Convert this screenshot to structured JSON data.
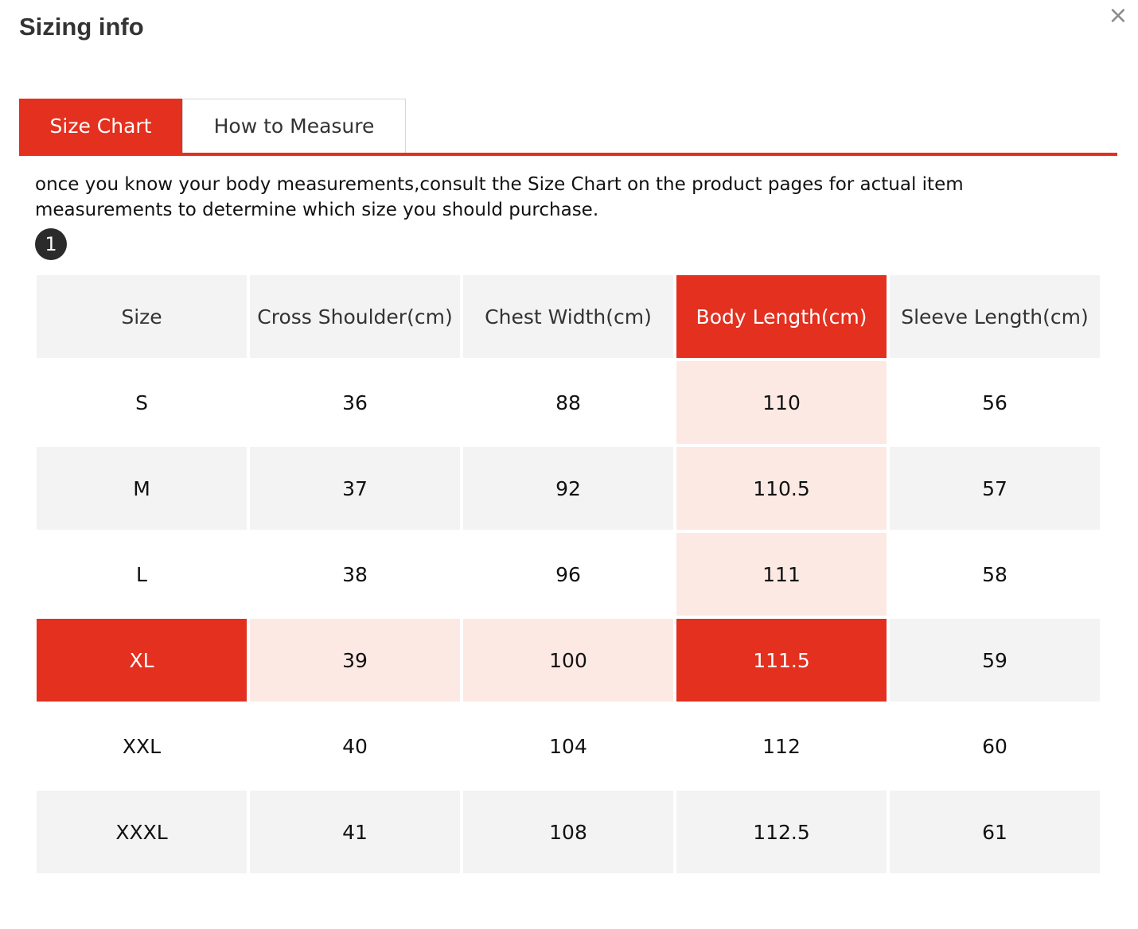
{
  "modal": {
    "title": "Sizing info",
    "close_icon": "×"
  },
  "tabs": [
    {
      "label": "Size Chart",
      "active": true
    },
    {
      "label": "How to Measure",
      "active": false
    }
  ],
  "description": "once you know your body measurements,consult the Size Chart on the product pages for actual item measurements to determine which size you should purchase.",
  "step_badge": "1",
  "colors": {
    "accent": "#e3301f",
    "highlight_light": "#fde9e4",
    "stripe": "#f3f3f3"
  },
  "table": {
    "headers": [
      "Size",
      "Cross Shoulder(cm)",
      "Chest Width(cm)",
      "Body Length(cm)",
      "Sleeve Length(cm)"
    ],
    "highlighted_column": "Body Length(cm)",
    "selected_size": "XL",
    "rows": [
      [
        "S",
        "36",
        "88",
        "110",
        "56"
      ],
      [
        "M",
        "37",
        "92",
        "110.5",
        "57"
      ],
      [
        "L",
        "38",
        "96",
        "111",
        "58"
      ],
      [
        "XL",
        "39",
        "100",
        "111.5",
        "59"
      ],
      [
        "XXL",
        "40",
        "104",
        "112",
        "60"
      ],
      [
        "XXXL",
        "41",
        "108",
        "112.5",
        "61"
      ]
    ]
  }
}
